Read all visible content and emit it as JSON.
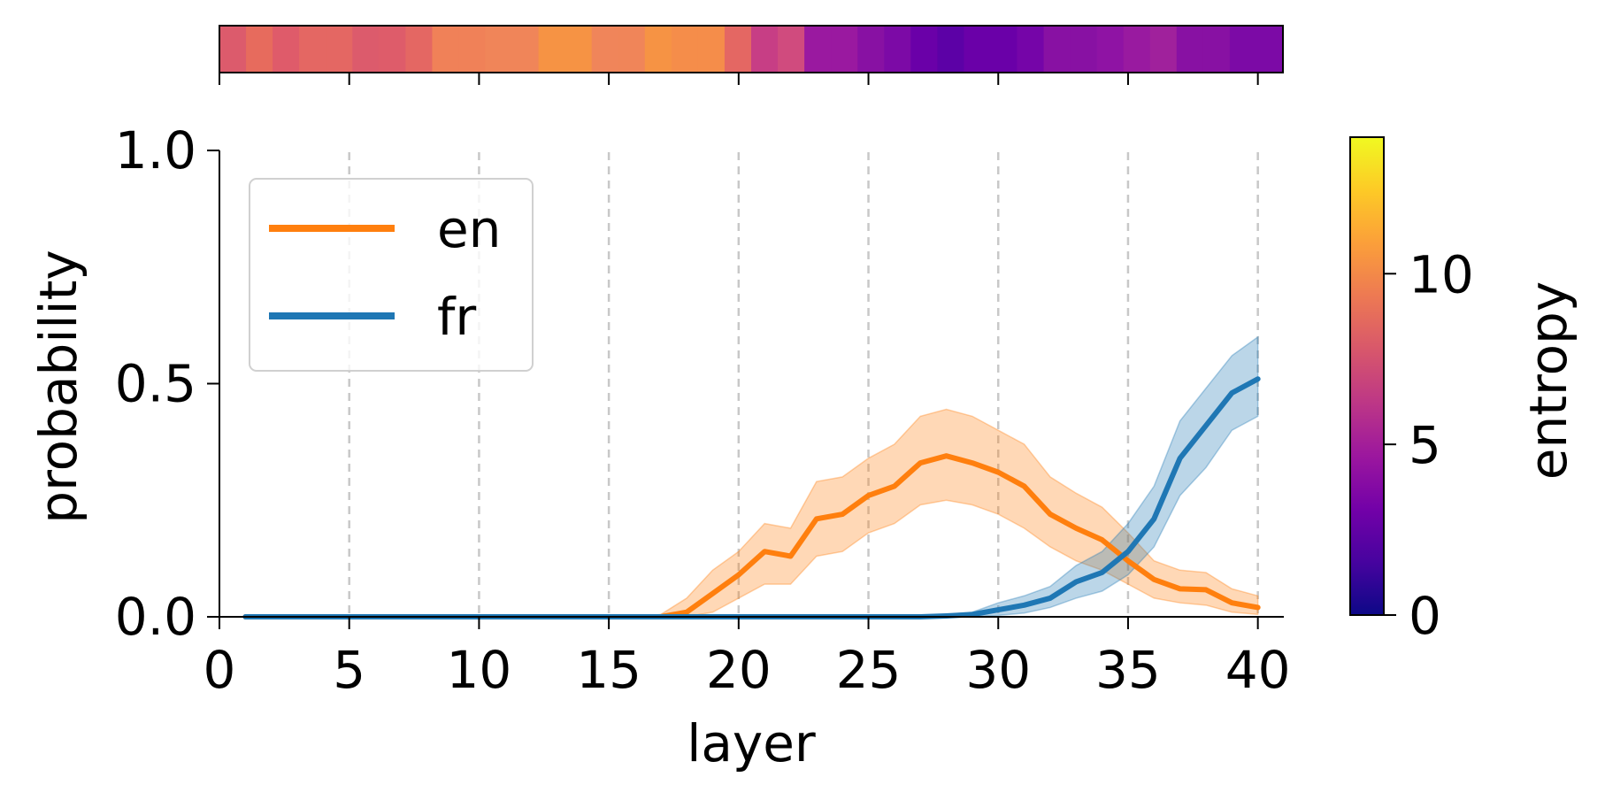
{
  "chart_data": {
    "type": "line",
    "xlabel": "layer",
    "ylabel": "probability",
    "xlim": [
      0,
      41
    ],
    "ylim": [
      0,
      1
    ],
    "xticks": [
      0,
      5,
      10,
      15,
      20,
      25,
      30,
      35,
      40
    ],
    "xtick_labels": [
      "0",
      "5",
      "10",
      "15",
      "20",
      "25",
      "30",
      "35",
      "40"
    ],
    "yticks": [
      0,
      0.5,
      1
    ],
    "ytick_labels": [
      "0.0",
      "0.5",
      "1.0"
    ],
    "vlines": [
      5,
      10,
      15,
      20,
      25,
      30,
      35,
      40
    ],
    "legend_position": "top-left",
    "x": [
      1,
      2,
      3,
      4,
      5,
      6,
      7,
      8,
      9,
      10,
      11,
      12,
      13,
      14,
      15,
      16,
      17,
      18,
      19,
      20,
      21,
      22,
      23,
      24,
      25,
      26,
      27,
      28,
      29,
      30,
      31,
      32,
      33,
      34,
      35,
      36,
      37,
      38,
      39,
      40
    ],
    "series": [
      {
        "name": "en",
        "color": "#ff7f0e",
        "values": [
          0,
          0,
          0,
          0,
          0,
          0,
          0,
          0,
          0,
          0,
          0,
          0,
          0,
          0,
          0,
          0,
          0,
          0.01,
          0.05,
          0.09,
          0.14,
          0.13,
          0.21,
          0.22,
          0.26,
          0.28,
          0.33,
          0.345,
          0.33,
          0.31,
          0.28,
          0.22,
          0.19,
          0.165,
          0.12,
          0.08,
          0.06,
          0.058,
          0.03,
          0.02
        ],
        "lower": [
          0,
          0,
          0,
          0,
          0,
          0,
          0,
          0,
          0,
          0,
          0,
          0,
          0,
          0,
          0,
          0,
          0,
          0,
          0.01,
          0.04,
          0.07,
          0.07,
          0.13,
          0.14,
          0.18,
          0.2,
          0.24,
          0.25,
          0.24,
          0.22,
          0.19,
          0.15,
          0.12,
          0.1,
          0.07,
          0.04,
          0.03,
          0.025,
          0.01,
          0.005
        ],
        "upper": [
          0,
          0,
          0,
          0,
          0,
          0,
          0,
          0,
          0,
          0,
          0,
          0,
          0,
          0,
          0,
          0,
          0.005,
          0.04,
          0.1,
          0.14,
          0.2,
          0.19,
          0.29,
          0.3,
          0.34,
          0.37,
          0.43,
          0.445,
          0.43,
          0.4,
          0.37,
          0.3,
          0.265,
          0.235,
          0.18,
          0.12,
          0.1,
          0.095,
          0.06,
          0.045
        ]
      },
      {
        "name": "fr",
        "color": "#1f77b4",
        "values": [
          0,
          0,
          0,
          0,
          0,
          0,
          0,
          0,
          0,
          0,
          0,
          0,
          0,
          0,
          0,
          0,
          0,
          0,
          0,
          0,
          0,
          0,
          0,
          0,
          0,
          0,
          0,
          0.002,
          0.005,
          0.015,
          0.025,
          0.04,
          0.075,
          0.095,
          0.14,
          0.21,
          0.34,
          0.41,
          0.48,
          0.51
        ],
        "lower": [
          0,
          0,
          0,
          0,
          0,
          0,
          0,
          0,
          0,
          0,
          0,
          0,
          0,
          0,
          0,
          0,
          0,
          0,
          0,
          0,
          0,
          0,
          0,
          0,
          0,
          0,
          0,
          0,
          0,
          0.003,
          0.008,
          0.02,
          0.04,
          0.055,
          0.09,
          0.15,
          0.26,
          0.32,
          0.4,
          0.43
        ],
        "upper": [
          0,
          0,
          0,
          0,
          0,
          0,
          0,
          0,
          0,
          0,
          0,
          0,
          0,
          0,
          0,
          0,
          0,
          0,
          0,
          0,
          0,
          0,
          0,
          0,
          0,
          0,
          0,
          0.005,
          0.01,
          0.03,
          0.045,
          0.065,
          0.11,
          0.14,
          0.2,
          0.28,
          0.42,
          0.49,
          0.56,
          0.6
        ]
      }
    ],
    "entropy_strip": {
      "colors": [
        "#dc5b6c",
        "#e76b5d",
        "#df5b6a",
        "#e46763",
        "#e46763",
        "#dc5b6c",
        "#de5c6a",
        "#e46763",
        "#f08158",
        "#f08158",
        "#f08559",
        "#f08559",
        "#f69344",
        "#f69344",
        "#f0855a",
        "#f08559",
        "#f69344",
        "#f58d4a",
        "#f58d4a",
        "#e46763",
        "#c73e85",
        "#d04b7e",
        "#9a19a0",
        "#9a19a0",
        "#8811a3",
        "#7c0aa6",
        "#6a00a8",
        "#5c01a6",
        "#6a00a8",
        "#6a00a8",
        "#7505a8",
        "#8811a3",
        "#8811a3",
        "#8f13a4",
        "#991aa0",
        "#a0219c",
        "#8811a3",
        "#8811a3",
        "#7c0aa6",
        "#7c0aa6"
      ]
    },
    "colorbar": {
      "label": "entropy",
      "min": 0,
      "max": 14,
      "ticks": [
        0,
        5,
        10
      ],
      "tick_labels": [
        "0",
        "5",
        "10"
      ],
      "colormap": "plasma",
      "stops": [
        "#0d0887",
        "#47039f",
        "#7301a8",
        "#9c179e",
        "#bd3786",
        "#d8576b",
        "#ed7953",
        "#fb9f3a",
        "#fdca26",
        "#f0f921"
      ]
    }
  }
}
